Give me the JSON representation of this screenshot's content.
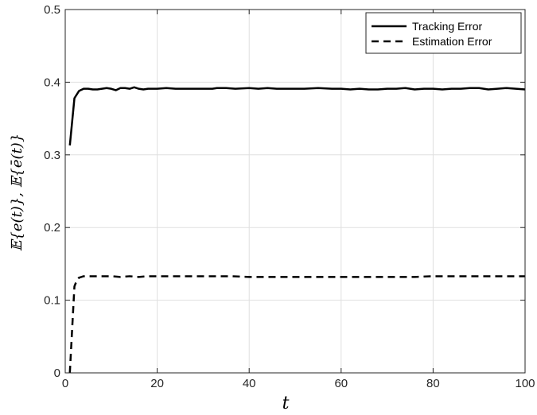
{
  "chart_data": {
    "type": "line",
    "xlabel": "t",
    "ylabel": "𝔼{e(t)}, 𝔼{ē(t)}",
    "xlim": [
      0,
      100
    ],
    "ylim": [
      0,
      0.5
    ],
    "xticks": [
      0,
      20,
      40,
      60,
      80,
      100
    ],
    "yticks": [
      0,
      0.1,
      0.2,
      0.3,
      0.4,
      0.5
    ],
    "xtick_labels": [
      "0",
      "20",
      "40",
      "60",
      "80",
      "100"
    ],
    "ytick_labels": [
      "0",
      "0.1",
      "0.2",
      "0.3",
      "0.4",
      "0.5"
    ],
    "grid": true,
    "legend_position": "top-right",
    "series": [
      {
        "name": "Tracking Error",
        "style": "solid",
        "color": "#000000",
        "x": [
          1,
          2,
          3,
          4,
          5,
          6,
          7,
          8,
          9,
          10,
          11,
          12,
          13,
          14,
          15,
          16,
          17,
          18,
          19,
          20,
          22,
          24,
          26,
          28,
          30,
          32,
          33,
          35,
          37,
          40,
          42,
          44,
          46,
          48,
          50,
          52,
          55,
          58,
          60,
          62,
          64,
          66,
          68,
          70,
          72,
          74,
          76,
          78,
          80,
          82,
          84,
          86,
          88,
          90,
          92,
          94,
          96,
          98,
          100
        ],
        "y": [
          0.313,
          0.378,
          0.388,
          0.391,
          0.391,
          0.39,
          0.39,
          0.391,
          0.392,
          0.391,
          0.389,
          0.392,
          0.392,
          0.391,
          0.393,
          0.391,
          0.39,
          0.391,
          0.391,
          0.391,
          0.392,
          0.391,
          0.391,
          0.391,
          0.391,
          0.391,
          0.392,
          0.392,
          0.391,
          0.392,
          0.391,
          0.392,
          0.391,
          0.391,
          0.391,
          0.391,
          0.392,
          0.391,
          0.391,
          0.39,
          0.391,
          0.39,
          0.39,
          0.391,
          0.391,
          0.392,
          0.39,
          0.391,
          0.391,
          0.39,
          0.391,
          0.391,
          0.392,
          0.392,
          0.39,
          0.391,
          0.392,
          0.391,
          0.39
        ]
      },
      {
        "name": "Estimation Error",
        "style": "dashed",
        "color": "#000000",
        "x": [
          1,
          1.5,
          2,
          2.5,
          3,
          4,
          5,
          6,
          8,
          10,
          12,
          14,
          16,
          18,
          20,
          24,
          28,
          32,
          36,
          40,
          44,
          48,
          52,
          56,
          60,
          64,
          68,
          72,
          76,
          80,
          84,
          88,
          92,
          96,
          100
        ],
        "y": [
          0,
          0.06,
          0.119,
          0.127,
          0.131,
          0.133,
          0.133,
          0.133,
          0.133,
          0.133,
          0.132,
          0.133,
          0.132,
          0.133,
          0.133,
          0.133,
          0.133,
          0.133,
          0.133,
          0.132,
          0.132,
          0.132,
          0.132,
          0.132,
          0.132,
          0.132,
          0.132,
          0.132,
          0.132,
          0.133,
          0.133,
          0.133,
          0.133,
          0.133,
          0.133
        ]
      }
    ]
  }
}
